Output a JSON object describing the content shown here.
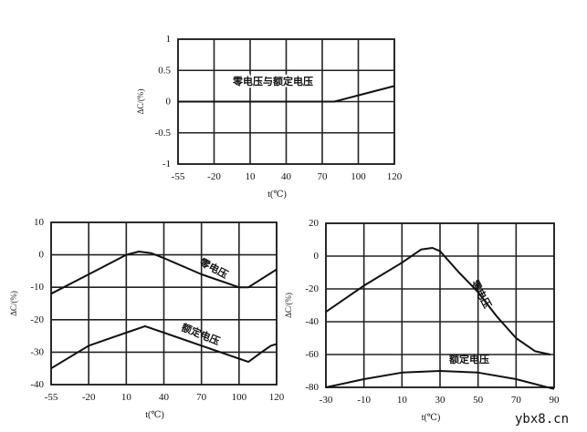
{
  "watermark": "ybx8.cn",
  "chart_data": [
    {
      "type": "line",
      "title": "",
      "xlabel": "t(℃)",
      "ylabel": "ΔC/(%)",
      "xticks": [
        -55,
        -20,
        10,
        40,
        70,
        100,
        120
      ],
      "xtick_spacing": "evenly spaced",
      "yticks": [
        1,
        0.5,
        0,
        -0.5,
        -1
      ],
      "ylim": [
        -1,
        1
      ],
      "grid": true,
      "series": [
        {
          "name": "零电压与额定电压",
          "x": [
            -55,
            10,
            40,
            70,
            80,
            100,
            120
          ],
          "y": [
            0,
            0,
            0,
            0,
            0,
            0.1,
            0.25
          ]
        }
      ],
      "annotations": [
        {
          "text": "零电压与额定电压"
        }
      ]
    },
    {
      "type": "line",
      "title": "",
      "xlabel": "t(℃)",
      "ylabel": "ΔC/(%)",
      "xticks": [
        -55,
        -20,
        10,
        40,
        70,
        100,
        120
      ],
      "xtick_spacing": "evenly spaced",
      "yticks": [
        10,
        0,
        -10,
        -20,
        -30,
        -40
      ],
      "ylim": [
        -40,
        10
      ],
      "grid": true,
      "series": [
        {
          "name": "零电压",
          "x": [
            -55,
            -20,
            10,
            20,
            30,
            40,
            70,
            100,
            105,
            120
          ],
          "y": [
            -12,
            -6,
            0,
            1,
            0.5,
            -1,
            -6,
            -10,
            -10,
            -4.5
          ]
        },
        {
          "name": "额定电压",
          "x": [
            -55,
            -20,
            10,
            25,
            40,
            70,
            100,
            105,
            112,
            117,
            120
          ],
          "y": [
            -35,
            -28,
            -24,
            -22,
            -24,
            -28,
            -32,
            -33,
            -30,
            -28,
            -27.5
          ]
        }
      ],
      "annotations": [
        {
          "text": "零电压"
        },
        {
          "text": "额定电压"
        }
      ]
    },
    {
      "type": "line",
      "title": "",
      "xlabel": "t(℃)",
      "ylabel": "ΔC/(%)",
      "xticks": [
        -30,
        -10,
        10,
        30,
        50,
        70,
        90
      ],
      "xtick_spacing": "linear",
      "yticks": [
        20,
        0,
        -20,
        -40,
        -60,
        -80
      ],
      "ylim": [
        -80,
        20
      ],
      "grid": true,
      "series": [
        {
          "name": "零电压",
          "x": [
            -30,
            -10,
            10,
            20,
            26,
            30,
            40,
            50,
            60,
            70,
            80,
            88
          ],
          "y": [
            -34,
            -18,
            -4,
            4,
            5,
            3,
            -10,
            -22,
            -37,
            -50,
            -58,
            -60
          ]
        },
        {
          "name": "额定电压",
          "x": [
            -30,
            -10,
            10,
            30,
            50,
            70,
            90
          ],
          "y": [
            -80,
            -75,
            -71,
            -70,
            -71,
            -75,
            -81
          ]
        }
      ],
      "annotations": [
        {
          "text": "零电压"
        },
        {
          "text": "额定电压"
        }
      ]
    }
  ]
}
